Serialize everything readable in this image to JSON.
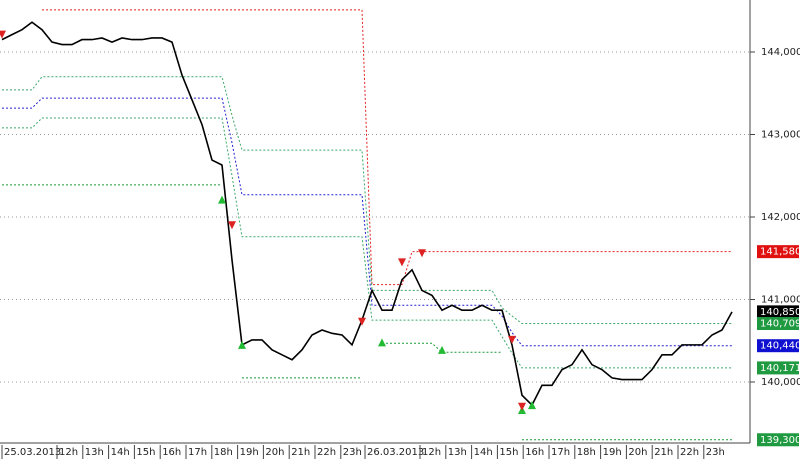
{
  "chart_data": {
    "type": "price",
    "ylim": [
      139285,
      144630
    ],
    "yticks": [
      {
        "value": 140000,
        "label": "140,000"
      },
      {
        "value": 141000,
        "label": "141,000"
      },
      {
        "value": 142000,
        "label": "142,000"
      },
      {
        "value": 143000,
        "label": "143,000"
      },
      {
        "value": 144000,
        "label": "144,000"
      }
    ],
    "grid": true,
    "x_tick_labels": [
      "25.03.2013",
      "12h",
      "13h",
      "14h",
      "15h",
      "16h",
      "17h",
      "18h",
      "19h",
      "20h",
      "21h",
      "22h",
      "23h",
      "26.03.2013",
      "12h",
      "13h",
      "14h",
      "15h",
      "16h",
      "17h",
      "18h",
      "19h",
      "20h",
      "21h",
      "22h",
      "23h"
    ],
    "series": [
      {
        "color": "#000000",
        "style": "solid",
        "values": [
          144150,
          144210,
          144270,
          144360,
          144270,
          144120,
          144090,
          144090,
          144150,
          144150,
          144170,
          144120,
          144170,
          144150,
          144150,
          144170,
          144170,
          144120,
          143720,
          143420,
          143120,
          142690,
          142630,
          141480,
          140450,
          140510,
          140510,
          140390,
          140330,
          140270,
          140390,
          140570,
          140630,
          140590,
          140570,
          140450,
          140750,
          141110,
          140870,
          140870,
          141240,
          141360,
          141110,
          141050,
          140870,
          140930,
          140870,
          140870,
          140930,
          140870,
          140870,
          140450,
          139840,
          139720,
          139960,
          139960,
          140150,
          140210,
          140390,
          140210,
          140150,
          140050,
          140030,
          140030,
          140030,
          140150,
          140330,
          140330,
          140450,
          140450,
          140450,
          140570,
          140630,
          140850
        ]
      },
      {
        "color": "#e02020",
        "style": "dotted",
        "values": [
          null,
          null,
          null,
          null,
          144510,
          144510,
          144510,
          144510,
          144510,
          144510,
          144510,
          144510,
          144510,
          144510,
          144510,
          144510,
          144510,
          144510,
          144510,
          144510,
          144510,
          144510,
          144510,
          144510,
          144510,
          144510,
          144510,
          144510,
          144510,
          144510,
          144510,
          144510,
          144510,
          144510,
          144510,
          144510,
          144510,
          141180,
          141180,
          141180,
          141180,
          141580,
          141580,
          141580,
          141580,
          141580,
          141580,
          141580,
          141580,
          141580,
          141580,
          141580,
          141580,
          141580,
          141580,
          141580,
          141580,
          141580,
          141580,
          141580,
          141580,
          141580,
          141580,
          141580,
          141580,
          141580,
          141580,
          141580,
          141580,
          141580,
          141580,
          141580,
          141580,
          141580
        ]
      },
      {
        "color": "#1a9a3a",
        "style": "dotted",
        "values": [
          142390,
          142390,
          142390,
          142390,
          142390,
          142390,
          142390,
          142390,
          142390,
          142390,
          142390,
          142390,
          142390,
          142390,
          142390,
          142390,
          142390,
          142390,
          142390,
          142390,
          142390,
          142390,
          142390,
          null,
          140050,
          140050,
          140050,
          140050,
          140050,
          140050,
          140050,
          140050,
          140050,
          140050,
          140050,
          140050,
          140050,
          null,
          140470,
          140470,
          140470,
          140470,
          140470,
          140470,
          140360,
          140360,
          140360,
          140360,
          140360,
          140360,
          140360,
          null,
          139300,
          139300,
          139300,
          139300,
          139300,
          139300,
          139300,
          139300,
          139300,
          139300,
          139300,
          139300,
          139300,
          139300,
          139300,
          139300,
          139300,
          139300,
          139300,
          139300,
          139300,
          139300
        ]
      },
      {
        "color": "#3aa86a",
        "style": "dotted",
        "values": [
          143540,
          143540,
          143540,
          143540,
          143700,
          143700,
          143700,
          143700,
          143700,
          143700,
          143700,
          143700,
          143700,
          143700,
          143700,
          143700,
          143700,
          143700,
          143700,
          143700,
          143700,
          143700,
          143700,
          143230,
          142810,
          142810,
          142810,
          142810,
          142810,
          142810,
          142810,
          142810,
          142810,
          142810,
          142810,
          142810,
          142810,
          141110,
          141110,
          141110,
          141110,
          141110,
          141110,
          141110,
          141110,
          141110,
          141110,
          141110,
          141110,
          141110,
          140900,
          140800,
          140709,
          140709,
          140709,
          140709,
          140709,
          140709,
          140709,
          140709,
          140709,
          140709,
          140709,
          140709,
          140709,
          140709,
          140709,
          140709,
          140709,
          140709,
          140709,
          140709,
          140709,
          140709
        ]
      },
      {
        "color": "#2020d0",
        "style": "dotted",
        "values": [
          143320,
          143320,
          143320,
          143320,
          143440,
          143440,
          143440,
          143440,
          143440,
          143440,
          143440,
          143440,
          143440,
          143440,
          143440,
          143440,
          143440,
          143440,
          143440,
          143440,
          143440,
          143440,
          143440,
          142900,
          142270,
          142270,
          142270,
          142270,
          142270,
          142270,
          142270,
          142270,
          142270,
          142270,
          142270,
          142270,
          142270,
          140930,
          140930,
          140930,
          140930,
          140930,
          140930,
          140930,
          140930,
          140930,
          140930,
          140930,
          140930,
          140930,
          140800,
          140600,
          140440,
          140440,
          140440,
          140440,
          140440,
          140440,
          140440,
          140440,
          140440,
          140440,
          140440,
          140440,
          140440,
          140440,
          140440,
          140440,
          140440,
          140440,
          140440,
          140440,
          140440,
          140440
        ]
      },
      {
        "color": "#3aa86a",
        "style": "dotted",
        "values": [
          143080,
          143080,
          143080,
          143080,
          143200,
          143200,
          143200,
          143200,
          143200,
          143200,
          143200,
          143200,
          143200,
          143200,
          143200,
          143200,
          143200,
          143200,
          143200,
          143200,
          143200,
          143200,
          143200,
          142500,
          141760,
          141760,
          141760,
          141760,
          141760,
          141760,
          141760,
          141760,
          141760,
          141760,
          141760,
          141760,
          141760,
          140750,
          140750,
          140750,
          140750,
          140750,
          140750,
          140750,
          140750,
          140750,
          140750,
          140750,
          140750,
          140750,
          140550,
          140350,
          140171,
          140171,
          140171,
          140171,
          140171,
          140171,
          140171,
          140171,
          140171,
          140171,
          140171,
          140171,
          140171,
          140171,
          140171,
          140171,
          140171,
          140171,
          140171,
          140171,
          140171,
          140171
        ]
      },
      {
        "color": "#22bb33",
        "style": "up",
        "values": [
          null,
          null,
          null,
          null,
          null,
          null,
          null,
          null,
          null,
          null,
          null,
          null,
          null,
          null,
          null,
          null,
          null,
          null,
          null,
          null,
          null,
          null,
          142210,
          null,
          140450,
          null,
          null,
          null,
          null,
          null,
          null,
          null,
          null,
          null,
          null,
          null,
          null,
          null,
          140480,
          null,
          null,
          null,
          null,
          null,
          140390,
          null,
          null,
          null,
          null,
          null,
          null,
          null,
          139660,
          139720,
          null,
          null,
          null,
          null,
          null,
          null,
          null,
          null,
          null,
          null,
          null,
          null,
          null,
          null,
          null,
          null,
          null,
          null,
          null,
          null
        ]
      },
      {
        "color": "#dd2222",
        "style": "down",
        "values": [
          144210,
          null,
          null,
          null,
          null,
          null,
          null,
          null,
          null,
          null,
          null,
          null,
          null,
          null,
          null,
          null,
          null,
          null,
          null,
          null,
          null,
          null,
          null,
          141900,
          null,
          null,
          null,
          null,
          null,
          null,
          null,
          null,
          null,
          null,
          null,
          null,
          140730,
          null,
          null,
          null,
          141450,
          null,
          141560,
          null,
          null,
          null,
          null,
          null,
          null,
          null,
          null,
          140510,
          139700,
          null,
          null,
          null,
          null,
          null,
          null,
          null,
          null,
          null,
          null,
          null,
          null,
          null,
          null,
          null,
          null,
          null,
          null,
          null,
          null,
          null
        ]
      }
    ],
    "price_labels": [
      {
        "value": 141580,
        "label": "141,580",
        "color": "#e01010"
      },
      {
        "value": 140850,
        "label": "140,850",
        "color": "#000000"
      },
      {
        "value": 140709,
        "label": "140,709",
        "color": "#1f9a40"
      },
      {
        "value": 140440,
        "label": "140,440",
        "color": "#1010d0"
      },
      {
        "value": 140171,
        "label": "140,171",
        "color": "#1f9a40"
      },
      {
        "value": 139300,
        "label": "139,300",
        "color": "#1f9a40"
      }
    ]
  }
}
